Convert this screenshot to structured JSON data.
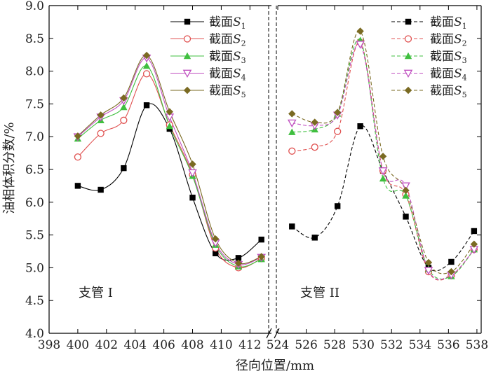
{
  "chart_data": {
    "type": "scatter",
    "xlabel": "径向位置/mm",
    "ylabel": "油相体积分数/%",
    "ylim": [
      4.0,
      9.0
    ],
    "yticks": [
      4.0,
      4.5,
      5.0,
      5.5,
      6.0,
      6.5,
      7.0,
      7.5,
      8.0,
      8.5,
      9.0
    ],
    "ytick_labels": [
      "4.0",
      "4.5",
      "5.0",
      "5.5",
      "6.0",
      "6.5",
      "7.0",
      "7.5",
      "8.0",
      "8.5",
      "9.0"
    ],
    "axis_break": true,
    "panels": [
      {
        "label": "支管 I",
        "line_style": "solid",
        "xlim": [
          398,
          413.5
        ],
        "xticks": [
          398,
          400,
          402,
          404,
          406,
          408,
          410,
          412
        ],
        "xtick_labels": [
          "398",
          "400",
          "402",
          "404",
          "406",
          "408",
          "410",
          "412"
        ],
        "x": [
          400.0,
          401.6,
          403.2,
          404.8,
          406.4,
          408.0,
          409.6,
          411.2,
          412.8
        ],
        "series": [
          {
            "name": "截面S1",
            "label_main": "截面",
            "label_var": "S",
            "label_sub": "1",
            "marker": "square",
            "color": "#000000",
            "values": [
              6.25,
              6.19,
              6.52,
              7.48,
              7.12,
              6.07,
              5.22,
              5.15,
              5.43
            ]
          },
          {
            "name": "截面S2",
            "label_main": "截面",
            "label_var": "S",
            "label_sub": "2",
            "marker": "circle-open",
            "color": "#e0504f",
            "values": [
              6.69,
              7.05,
              7.25,
              7.96,
              7.18,
              6.42,
              5.3,
              5.0,
              5.14
            ]
          },
          {
            "name": "截面S3",
            "label_main": "截面",
            "label_var": "S",
            "label_sub": "3",
            "marker": "triangle",
            "color": "#3fbf3f",
            "values": [
              6.97,
              7.25,
              7.45,
              8.08,
              7.16,
              6.4,
              5.35,
              5.02,
              5.13
            ]
          },
          {
            "name": "截面S4",
            "label_main": "截面",
            "label_var": "S",
            "label_sub": "4",
            "marker": "triangle-down-open",
            "color": "#c050c0",
            "values": [
              7.0,
              7.3,
              7.55,
              8.2,
              7.3,
              6.45,
              5.38,
              5.05,
              5.16
            ]
          },
          {
            "name": "截面S5",
            "label_main": "截面",
            "label_var": "S",
            "label_sub": "5",
            "marker": "diamond",
            "color": "#7a6a22",
            "values": [
              7.01,
              7.33,
              7.59,
              8.24,
              7.38,
              6.58,
              5.44,
              5.07,
              5.17
            ]
          }
        ]
      },
      {
        "label": "支管 II",
        "line_style": "dashed",
        "xlim": [
          524,
          538.3
        ],
        "xticks": [
          524,
          526,
          528,
          530,
          532,
          534,
          536,
          538
        ],
        "xtick_labels": [
          "524",
          "526",
          "528",
          "530",
          "532",
          "534",
          "536",
          "538"
        ],
        "x": [
          525.0,
          526.6,
          528.2,
          529.8,
          531.4,
          533.0,
          534.6,
          536.2,
          537.8
        ],
        "series": [
          {
            "name": "截面S1",
            "label_main": "截面",
            "label_var": "S",
            "label_sub": "1",
            "marker": "square",
            "color": "#000000",
            "values": [
              5.63,
              5.46,
              5.94,
              7.16,
              6.48,
              5.78,
              5.0,
              5.09,
              5.56
            ]
          },
          {
            "name": "截面S2",
            "label_main": "截面",
            "label_var": "S",
            "label_sub": "2",
            "marker": "circle-open",
            "color": "#e0504f",
            "values": [
              6.78,
              6.84,
              7.08,
              8.44,
              6.48,
              6.12,
              4.94,
              4.88,
              5.28
            ]
          },
          {
            "name": "截面S3",
            "label_main": "截面",
            "label_var": "S",
            "label_sub": "3",
            "marker": "triangle",
            "color": "#3fbf3f",
            "values": [
              7.07,
              7.11,
              7.35,
              8.47,
              6.36,
              6.1,
              4.98,
              4.87,
              5.28
            ]
          },
          {
            "name": "截面S4",
            "label_main": "截面",
            "label_var": "S",
            "label_sub": "4",
            "marker": "triangle-down-open",
            "color": "#c050c0",
            "values": [
              7.21,
              7.17,
              7.33,
              8.41,
              6.48,
              6.25,
              4.96,
              4.89,
              5.28
            ]
          },
          {
            "name": "截面S5",
            "label_main": "截面",
            "label_var": "S",
            "label_sub": "5",
            "marker": "diamond",
            "color": "#7a6a22",
            "values": [
              7.35,
              7.22,
              7.37,
              8.61,
              6.7,
              6.18,
              5.08,
              4.94,
              5.36
            ]
          }
        ]
      }
    ]
  }
}
